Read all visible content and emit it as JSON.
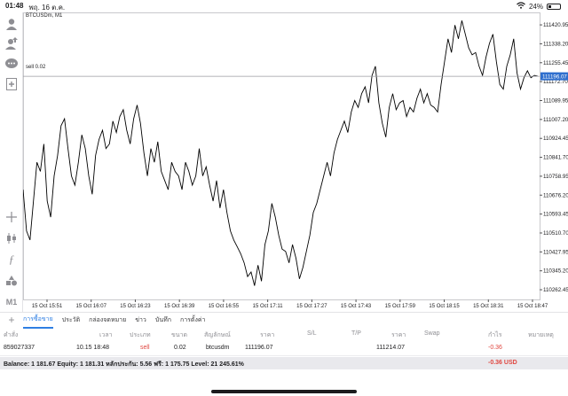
{
  "status_bar": {
    "time": "01:48",
    "date": "พฤ. 16 ต.ค.",
    "battery": "24%",
    "battery_level": 0.24
  },
  "toolbar": {
    "icons": [
      "person-icon",
      "person-up-icon",
      "chat-icon",
      "new-chart-icon",
      "crosshair-icon",
      "candles-icon",
      "indicator-icon",
      "objects-icon"
    ],
    "timeframe": "M1"
  },
  "chart": {
    "symbol": "BTCUSDm, M1",
    "order_line_label": "sell 0.02",
    "current_price": "111196.07",
    "price_ticks": [
      "111420.95",
      "111338.20",
      "111255.45",
      "111172.70",
      "111089.95",
      "111007.20",
      "110924.45",
      "110841.70",
      "110758.95",
      "110676.20",
      "110593.45",
      "110510.70",
      "110427.95",
      "110345.20",
      "110262.45"
    ],
    "time_ticks": [
      "15 Oct 15:51",
      "15 Oct 16:07",
      "15 Oct 16:23",
      "15 Oct 16:39",
      "15 Oct 16:55",
      "15 Oct 17:11",
      "15 Oct 17:27",
      "15 Oct 17:43",
      "15 Oct 17:59",
      "15 Oct 18:15",
      "15 Oct 18:31",
      "15 Oct 18:47"
    ],
    "colors": {
      "line": "#000000",
      "grid": "#e6e6e6",
      "price_tag": "#2f6fce"
    }
  },
  "chart_data": {
    "type": "line",
    "title": "",
    "xlabel": "",
    "ylabel": "",
    "ylim": [
      110220,
      111460
    ],
    "x_range": [
      "15 Oct 15:45",
      "15 Oct 18:51"
    ],
    "series": [
      {
        "values": [
          110700,
          110520,
          110480,
          110650,
          110820,
          110780,
          110900,
          110650,
          110580,
          110760,
          110850,
          110980,
          111010,
          110880,
          110760,
          110720,
          110820,
          110940,
          110880,
          110760,
          110680,
          110850,
          110920,
          110960,
          110880,
          110900,
          111000,
          110950,
          111020,
          111050,
          110960,
          110900,
          111010,
          111070,
          110990,
          110860,
          110760,
          110880,
          110820,
          110910,
          110780,
          110740,
          110700,
          110820,
          110780,
          110760,
          110700,
          110820,
          110780,
          110720,
          110760,
          110880,
          110760,
          110800,
          110720,
          110650,
          110740,
          110620,
          110700,
          110600,
          110520,
          110480,
          110450,
          110420,
          110380,
          110320,
          110340,
          110280,
          110370,
          110300,
          110460,
          110520,
          110640,
          110580,
          110500,
          110440,
          110430,
          110380,
          110460,
          110400,
          110310,
          110360,
          110430,
          110500,
          110600,
          110640,
          110700,
          110760,
          110820,
          110760,
          110860,
          110920,
          110960,
          111000,
          110950,
          111040,
          111090,
          111060,
          111120,
          111150,
          111080,
          111200,
          111240,
          111080,
          110990,
          110930,
          111060,
          111120,
          111050,
          111080,
          111090,
          111020,
          111060,
          111040,
          111100,
          111140,
          111080,
          111120,
          111070,
          111060,
          111040,
          111160,
          111260,
          111360,
          111300,
          111420,
          111360,
          111440,
          111380,
          111320,
          111290,
          111300,
          111240,
          111200,
          111280,
          111340,
          111380,
          111260,
          111160,
          111140,
          111240,
          111290,
          111360,
          111210,
          111140,
          111190,
          111220,
          111190,
          111200,
          111196.07
        ]
      }
    ]
  },
  "tabs": {
    "add": "+",
    "items": [
      "การซื้อขาย",
      "ประวัติ",
      "กล่องจดหมาย",
      "ข่าว",
      "บันทึก",
      "การตั้งค่า"
    ]
  },
  "trade_table": {
    "headers": [
      "คำสั่ง",
      "เวลา",
      "ประเภท",
      "ขนาด",
      "สัญลักษณ์",
      "ราคา",
      "S/L",
      "T/P",
      "ราคา",
      "Swap",
      "กำไร",
      "หมายเหตุ"
    ],
    "row": {
      "order": "859027337",
      "time": "10.15 18:48",
      "type": "sell",
      "size": "0.02",
      "symbol": "btcusdm",
      "open_price": "111196.07",
      "current_price": "111214.07",
      "profit": "-0.36"
    }
  },
  "balance": {
    "summary": "Balance: 1 181.67 Equity: 1 181.31 หลักประกัน: 5.56 ฟรี: 1 175.75 Level: 21 245.61%",
    "profit": "-0.36  USD"
  }
}
